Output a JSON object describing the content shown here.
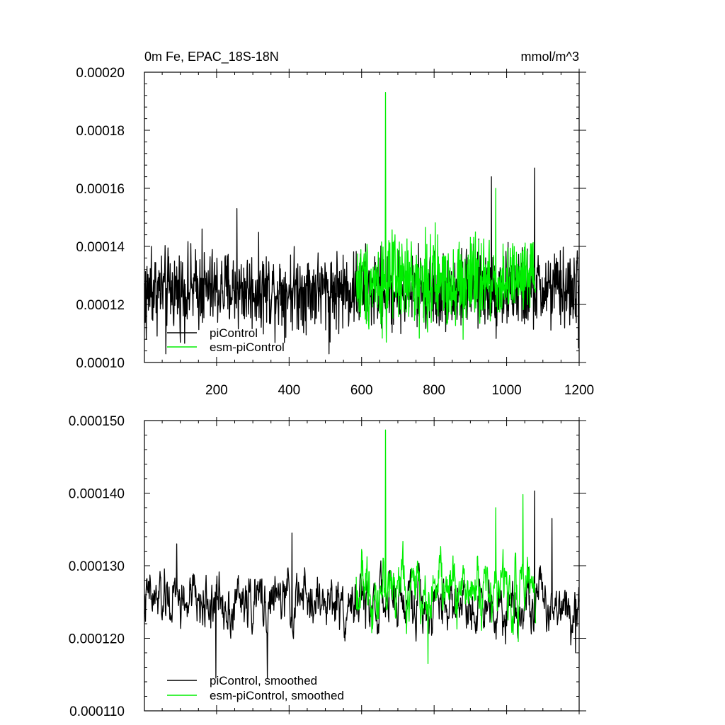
{
  "chart_data": [
    {
      "type": "line",
      "title": "0m Fe, EPAC_18S-18N",
      "units_label": "mmol/m^3",
      "xlabel": "",
      "ylabel": "",
      "xlim": [
        1,
        1200
      ],
      "ylim": [
        0.0001,
        0.0002
      ],
      "x_ticks": [
        200,
        400,
        600,
        800,
        1000,
        1200
      ],
      "x_tick_labels": [
        "200",
        "400",
        "600",
        "800",
        "1000",
        "1200"
      ],
      "y_ticks": [
        0.0001,
        0.00012,
        0.00014,
        0.00016,
        0.00018,
        0.0002
      ],
      "y_tick_labels": [
        "0.00010",
        "0.00012",
        "0.00014",
        "0.00016",
        "0.00018",
        "0.00020"
      ],
      "grid": false,
      "legend_position": "bottom-left",
      "series": [
        {
          "name": "piControl",
          "color": "#000000",
          "x_range": [
            1,
            1200
          ],
          "mean": 0.000125,
          "spread": 8.5e-06,
          "spikes": [
            [
              6,
              0.000108
            ],
            [
              20,
              0.00014
            ],
            [
              60,
              0.000103
            ],
            [
              160,
              0.000146
            ],
            [
              256,
              0.000153
            ],
            [
              510,
              0.000103
            ],
            [
              958,
              0.000164
            ],
            [
              1077,
              0.000167
            ],
            [
              1198,
              0.000105
            ]
          ]
        },
        {
          "name": "esm-piControl",
          "color": "#00ee00",
          "x_range": [
            585,
            1080
          ],
          "mean": 0.000128,
          "spread": 9.5e-06,
          "spikes": [
            [
              666,
              0.000193
            ],
            [
              668,
              0.000107
            ],
            [
              970,
              0.00016
            ],
            [
              880,
              0.000108
            ]
          ]
        }
      ]
    },
    {
      "type": "line",
      "title": "",
      "xlabel": "",
      "ylabel": "",
      "xlim": [
        1,
        1200
      ],
      "ylim": [
        0.00011,
        0.00015
      ],
      "x_ticks": [
        200,
        400,
        600,
        800,
        1000,
        1200
      ],
      "y_ticks": [
        0.00011,
        0.00012,
        0.00013,
        0.00014,
        0.00015
      ],
      "y_tick_labels": [
        "0.000110",
        "0.000120",
        "0.000130",
        "0.000140",
        "0.000150"
      ],
      "grid": false,
      "legend_position": "bottom-left",
      "series": [
        {
          "name": "piControl, smoothed",
          "color": "#000000",
          "x_range": [
            1,
            1200
          ],
          "mean": 0.000125,
          "spread": 3.2e-06,
          "spikes": [
            [
              90,
              0.000133
            ],
            [
              198,
              0.0001145
            ],
            [
              340,
              0.0001145
            ],
            [
              408,
              0.0001345
            ],
            [
              1077,
              0.0001403
            ],
            [
              1125,
              0.0001365
            ],
            [
              1190,
              0.000118
            ]
          ]
        },
        {
          "name": "esm-piControl, smoothed",
          "color": "#00ee00",
          "x_range": [
            585,
            1080
          ],
          "mean": 0.000127,
          "spread": 3.5e-06,
          "spikes": [
            [
              666,
              0.0001487
            ],
            [
              783,
              0.0001165
            ],
            [
              970,
              0.000138
            ],
            [
              1045,
              0.0001398
            ]
          ]
        }
      ]
    }
  ]
}
